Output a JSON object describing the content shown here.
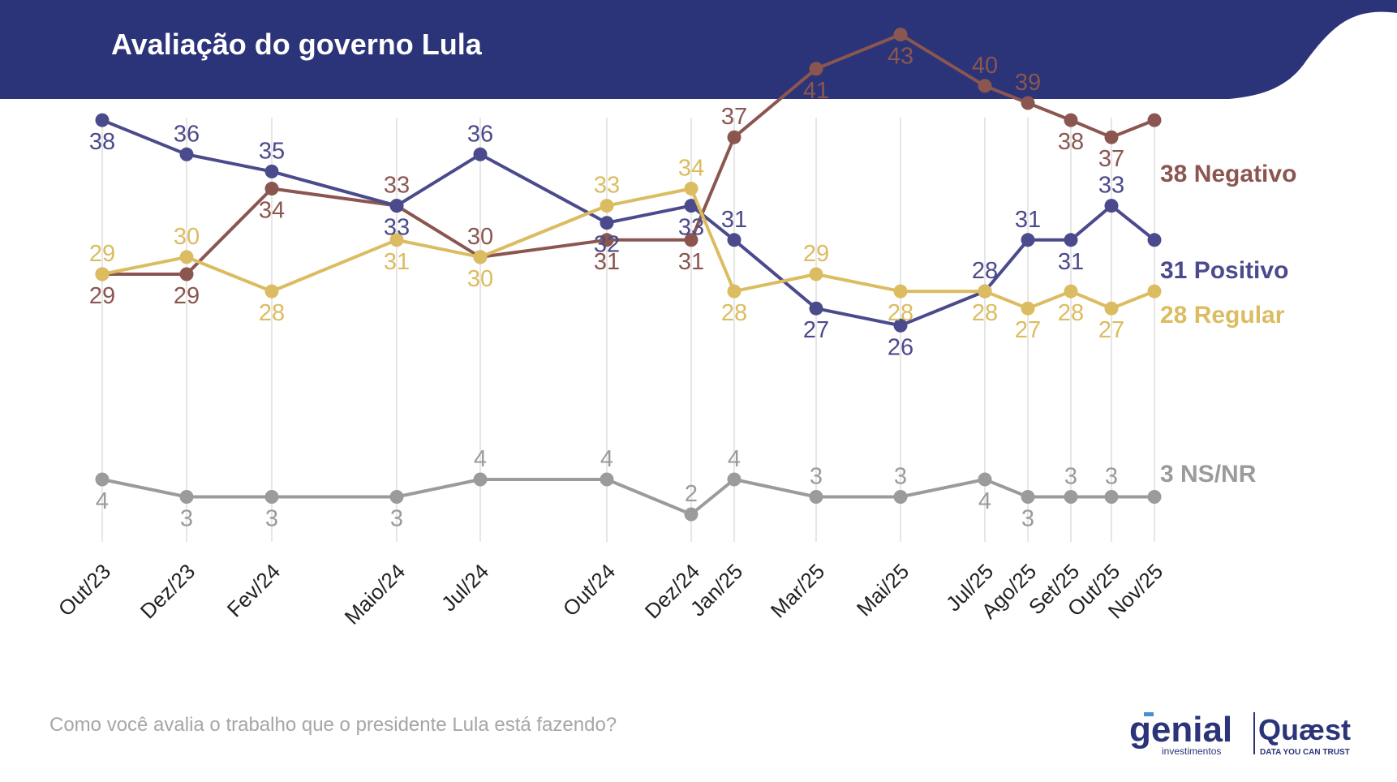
{
  "header": {
    "title": "Avaliação do governo Lula"
  },
  "question": "Como você avalia o trabalho que o presidente Lula está fazendo?",
  "logos": {
    "genial": "genial",
    "genial_sub": "investimentos",
    "quaest": "Quæst",
    "quaest_sub": "DATA YOU CAN TRUST"
  },
  "colors": {
    "header_bg": "#2b3478",
    "negativo": "#8b5650",
    "positivo": "#4b4a8c",
    "regular": "#dcbc60",
    "nsnr": "#9b9b9b",
    "grid": "#e6e6e6"
  },
  "chart_data": {
    "type": "line",
    "title": "Avaliação do governo Lula",
    "categories": [
      "Out/23",
      "Dez/23",
      "Fev/24",
      "Maio/24",
      "Jul/24",
      "Out/24",
      "Dez/24",
      "Jan/25",
      "Mar/25",
      "Mai/25",
      "Jul/25",
      "Ago/25",
      "Set/25",
      "Out/25",
      "Nov/25"
    ],
    "grid": "vertical",
    "series": [
      {
        "name": "Negativo",
        "end_label": "38 Negativo",
        "values": [
          29,
          29,
          34,
          33,
          30,
          31,
          31,
          37,
          41,
          43,
          40,
          39,
          38,
          37,
          38
        ]
      },
      {
        "name": "Positivo",
        "end_label": "31 Positivo",
        "values": [
          38,
          36,
          35,
          33,
          36,
          32,
          33,
          31,
          27,
          26,
          28,
          31,
          31,
          33,
          31
        ]
      },
      {
        "name": "Regular",
        "end_label": "28 Regular",
        "values": [
          29,
          30,
          28,
          31,
          30,
          33,
          34,
          28,
          29,
          28,
          28,
          27,
          28,
          27,
          28
        ]
      },
      {
        "name": "NS/NR",
        "end_label": "3 NS/NR",
        "values": [
          4,
          3,
          3,
          3,
          4,
          4,
          2,
          4,
          3,
          3,
          4,
          3,
          3,
          3,
          3
        ]
      }
    ]
  }
}
